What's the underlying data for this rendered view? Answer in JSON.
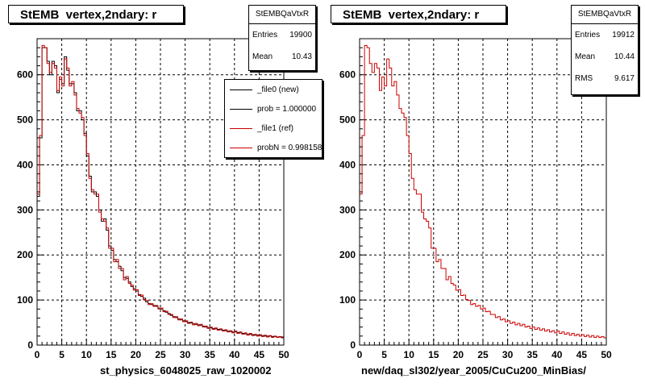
{
  "footer_text": "",
  "charts": [
    {
      "title": "StEMB  vertex,2ndary: r",
      "stats": {
        "name": "StEMBQaVtxR",
        "rows": [
          {
            "label": "Entries",
            "value": "19900"
          },
          {
            "label": "Mean",
            "value": "10.43"
          }
        ]
      },
      "legend": [
        {
          "label": "_file0 (new)",
          "color": "#000000"
        },
        {
          "label": "prob = 1.000000",
          "color": "#000000"
        },
        {
          "label": "_file1 (ref)",
          "color": "#cc0000"
        },
        {
          "label": "probN = 0.998158",
          "color": "#cc0000"
        }
      ],
      "xlabel": "st_physics_6048025_raw_1020002"
    },
    {
      "title": "StEMB  vertex,2ndary: r",
      "stats": {
        "name": "StEMBQaVtxR",
        "rows": [
          {
            "label": "Entries",
            "value": "19912"
          },
          {
            "label": "Mean",
            "value": "10.44"
          },
          {
            "label": "RMS",
            "value": "9.617"
          }
        ]
      },
      "legend": [],
      "xlabel": "new/daq_sl302/year_2005/CuCu200_MinBias/"
    }
  ],
  "chart_data": [
    {
      "type": "histogram",
      "xlim": [
        0,
        50
      ],
      "ylim": [
        0,
        680
      ],
      "x_ticks": [
        0,
        5,
        10,
        15,
        20,
        25,
        30,
        35,
        40,
        45,
        50
      ],
      "y_ticks": [
        0,
        100,
        200,
        300,
        400,
        500,
        600
      ],
      "grid": true,
      "bin_width": 0.5,
      "series": [
        {
          "name": "_file0 (new)",
          "color": "#000000",
          "values": [
            330,
            460,
            660,
            660,
            630,
            600,
            630,
            620,
            560,
            590,
            580,
            640,
            610,
            580,
            580,
            560,
            520,
            520,
            500,
            470,
            420,
            375,
            340,
            340,
            330,
            300,
            275,
            280,
            255,
            220,
            210,
            190,
            185,
            175,
            165,
            150,
            148,
            140,
            130,
            125,
            120,
            112,
            108,
            104,
            96,
            92,
            90,
            88,
            86,
            82,
            80,
            76,
            73,
            70,
            66,
            63,
            61,
            58,
            56,
            54,
            52,
            50,
            49,
            47,
            46,
            45,
            44,
            42,
            40,
            39,
            38,
            37,
            36,
            35,
            34,
            33,
            32,
            31,
            30,
            29,
            29,
            28,
            27,
            26,
            25,
            24,
            24,
            23,
            22,
            22,
            21,
            21,
            20,
            20,
            20,
            19,
            19,
            18,
            18,
            18
          ]
        },
        {
          "name": "_file1 (ref)",
          "color": "#cc0000",
          "values": [
            335,
            465,
            665,
            660,
            625,
            605,
            625,
            615,
            565,
            595,
            575,
            635,
            615,
            575,
            585,
            555,
            525,
            515,
            505,
            465,
            425,
            370,
            345,
            335,
            335,
            295,
            280,
            275,
            260,
            215,
            215,
            185,
            190,
            170,
            170,
            145,
            152,
            137,
            133,
            122,
            123,
            110,
            111,
            101,
            99,
            90,
            92,
            86,
            88,
            80,
            82,
            74,
            75,
            68,
            68,
            61,
            63,
            56,
            58,
            52,
            54,
            48,
            51,
            45,
            48,
            43,
            46,
            40,
            42,
            37,
            40,
            35,
            38,
            33,
            36,
            31,
            34,
            29,
            32,
            27,
            31,
            26,
            29,
            24,
            27,
            22,
            26,
            21,
            24,
            20,
            23,
            19,
            22,
            18,
            21,
            17,
            20,
            17,
            19,
            16
          ]
        }
      ]
    },
    {
      "type": "histogram",
      "xlim": [
        0,
        50
      ],
      "ylim": [
        0,
        680
      ],
      "x_ticks": [
        0,
        5,
        10,
        15,
        20,
        25,
        30,
        35,
        40,
        45,
        50
      ],
      "y_ticks": [
        0,
        100,
        200,
        300,
        400,
        500,
        600
      ],
      "grid": true,
      "bin_width": 0.5,
      "series": [
        {
          "name": "",
          "color": "#cc0000",
          "values": [
            335,
            465,
            665,
            660,
            625,
            605,
            625,
            615,
            565,
            595,
            575,
            635,
            615,
            575,
            585,
            555,
            525,
            515,
            505,
            465,
            425,
            370,
            345,
            335,
            335,
            295,
            280,
            275,
            260,
            215,
            215,
            185,
            190,
            170,
            170,
            145,
            152,
            137,
            133,
            122,
            123,
            110,
            111,
            101,
            99,
            90,
            92,
            86,
            88,
            80,
            82,
            74,
            75,
            68,
            68,
            61,
            63,
            56,
            58,
            52,
            54,
            48,
            51,
            45,
            48,
            43,
            46,
            40,
            42,
            37,
            40,
            35,
            38,
            33,
            36,
            31,
            34,
            29,
            32,
            27,
            31,
            26,
            29,
            24,
            27,
            22,
            26,
            21,
            24,
            20,
            23,
            19,
            22,
            18,
            21,
            17,
            20,
            17,
            19,
            16
          ]
        }
      ]
    }
  ]
}
